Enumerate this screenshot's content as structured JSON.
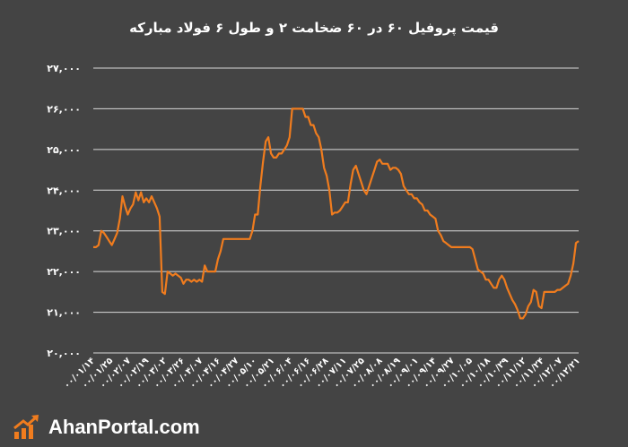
{
  "chart_data": {
    "type": "line",
    "title": "قیمت پروفیل ۶۰ در ۶۰ ضخامت ۲ و طول ۶ فولاد مبارکه",
    "xlabel": "",
    "ylabel": "",
    "ylim": [
      20000,
      27000
    ],
    "yticks": [
      20000,
      21000,
      22000,
      23000,
      24000,
      25000,
      26000,
      27000
    ],
    "ytick_labels": [
      "۲۰,۰۰۰",
      "۲۱,۰۰۰",
      "۲۲,۰۰۰",
      "۲۳,۰۰۰",
      "۲۴,۰۰۰",
      "۲۵,۰۰۰",
      "۲۶,۰۰۰",
      "۲۷,۰۰۰"
    ],
    "xtick_labels": [
      "۰۰/۰۱/۱۴",
      "۰۰/۰۱/۲۵",
      "۰۰/۰۲/۰۷",
      "۰۰/۰۲/۱۹",
      "۰۰/۰۳/۰۲",
      "۰۰/۰۳/۲۶",
      "۰۰/۰۴/۰۷",
      "۰۰/۰۴/۱۶",
      "۰۰/۰۴/۲۷",
      "۰۰/۰۵/۱۰",
      "۰۰/۰۵/۲۱",
      "۰۰/۰۶/۰۴",
      "۰۰/۰۶/۱۶",
      "۰۰/۰۶/۲۸",
      "۰۰/۰۷/۱۱",
      "۰۰/۰۷/۲۵",
      "۰۰/۰۸/۰۸",
      "۰۰/۰۸/۱۹",
      "۰۰/۰۹/۰۱",
      "۰۰/۰۹/۱۴",
      "۰۰/۰۹/۲۷",
      "۰۰/۱۰/۰۵",
      "۰۰/۱۰/۱۸",
      "۰۰/۱۰/۲۹",
      "۰۰/۱۱/۱۲",
      "۰۰/۱۱/۲۴",
      "۰۰/۱۲/۰۷",
      "۰۰/۱۲/۲۱"
    ],
    "grid": true,
    "series": [
      {
        "color": "#f07c1e",
        "values": [
          22600,
          22600,
          22650,
          23000,
          22950,
          22850,
          22750,
          22650,
          22800,
          22950,
          23300,
          23850,
          23600,
          23400,
          23550,
          23650,
          23950,
          23750,
          23950,
          23700,
          23800,
          23700,
          23850,
          23700,
          23550,
          23350,
          21500,
          21450,
          22000,
          21950,
          21900,
          21950,
          21900,
          21850,
          21700,
          21800,
          21800,
          21750,
          21800,
          21750,
          21800,
          21750,
          22150,
          22000,
          22000,
          22000,
          22000,
          22300,
          22500,
          22800,
          22800,
          22800,
          22800,
          22800,
          22800,
          22800,
          22800,
          22800,
          22800,
          22800,
          23000,
          23400,
          23400,
          24100,
          24700,
          25200,
          25300,
          24900,
          24800,
          24800,
          24900,
          24900,
          25000,
          25100,
          25300,
          26000,
          26000,
          26000,
          26000,
          26000,
          25800,
          25800,
          25600,
          25600,
          25400,
          25300,
          25000,
          24550,
          24350,
          24000,
          23400,
          23450,
          23450,
          23500,
          23600,
          23700,
          23700,
          24150,
          24500,
          24600,
          24400,
          24200,
          24000,
          23900,
          24100,
          24300,
          24500,
          24700,
          24750,
          24650,
          24650,
          24650,
          24500,
          24550,
          24550,
          24500,
          24400,
          24100,
          24000,
          23900,
          23900,
          23800,
          23800,
          23700,
          23650,
          23500,
          23500,
          23400,
          23350,
          23300,
          23000,
          22900,
          22750,
          22700,
          22650,
          22600,
          22600,
          22600,
          22600,
          22600,
          22600,
          22600,
          22600,
          22550,
          22300,
          22050,
          22000,
          21950,
          21800,
          21800,
          21700,
          21600,
          21600,
          21800,
          21900,
          21800,
          21600,
          21450,
          21300,
          21200,
          21050,
          20850,
          20850,
          20950,
          21150,
          21250,
          21550,
          21500,
          21150,
          21100,
          21500,
          21500,
          21500,
          21500,
          21500,
          21550,
          21550,
          21600,
          21650,
          21700,
          21900,
          22200,
          22700,
          22750
        ]
      }
    ]
  },
  "brand": {
    "name": "AhanPortal.com",
    "logo_icon": "trend-arrow-icon"
  }
}
